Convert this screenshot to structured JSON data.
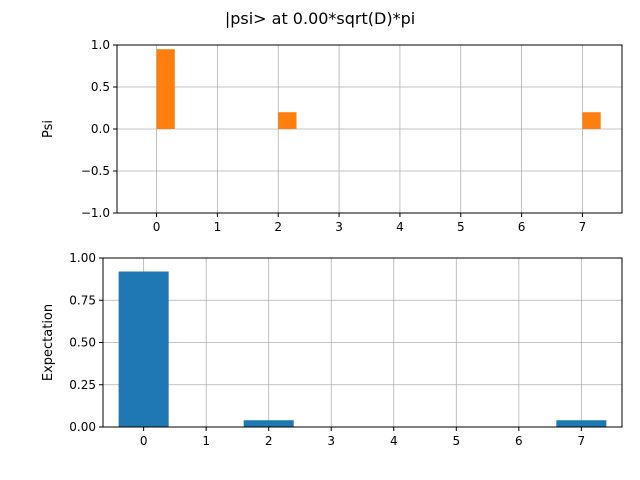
{
  "figure": {
    "title": "|psi> at 0.00*sqrt(D)*pi"
  },
  "chart_data": [
    {
      "type": "bar",
      "title": "",
      "xlabel": "",
      "ylabel": "Psi",
      "x": [
        0,
        1,
        2,
        3,
        4,
        5,
        6,
        7
      ],
      "x_ticks": [
        0,
        1,
        2,
        3,
        4,
        5,
        6,
        7
      ],
      "ylim": [
        -1.0,
        1.0
      ],
      "xlim": [
        -0.65,
        7.65
      ],
      "y_ticks": [
        -1.0,
        -0.5,
        0.0,
        0.5,
        1.0
      ],
      "y_tick_labels": [
        "−1.0",
        "−0.5",
        "0.0",
        "0.5",
        "1.0"
      ],
      "grid": true,
      "series": [
        {
          "values": [
            0.0,
            0.0,
            0.0,
            0.0,
            0.0,
            0.0,
            0.0,
            0.0
          ],
          "color": "#1f77b4",
          "bar_width": 0.1,
          "offset": 0.0
        },
        {
          "values": [
            0.95,
            0.0,
            0.2,
            0.0,
            0.0,
            0.0,
            0.0,
            0.2
          ],
          "color": "#ff7f0e",
          "bar_width": 0.3,
          "offset": 0.15
        }
      ]
    },
    {
      "type": "bar",
      "title": "",
      "xlabel": "",
      "ylabel": "Expectation",
      "x": [
        0,
        1,
        2,
        3,
        4,
        5,
        6,
        7
      ],
      "x_ticks": [
        0,
        1,
        2,
        3,
        4,
        5,
        6,
        7
      ],
      "ylim": [
        0.0,
        1.0
      ],
      "xlim": [
        -0.65,
        7.65
      ],
      "y_ticks": [
        0.0,
        0.25,
        0.5,
        0.75,
        1.0
      ],
      "y_tick_labels": [
        "0.00",
        "0.25",
        "0.50",
        "0.75",
        "1.00"
      ],
      "grid": true,
      "series": [
        {
          "values": [
            0.92,
            0.0,
            0.04,
            0.0,
            0.0,
            0.0,
            0.0,
            0.04
          ],
          "color": "#1f77b4",
          "bar_width": 0.8,
          "offset": 0.0
        }
      ]
    }
  ]
}
